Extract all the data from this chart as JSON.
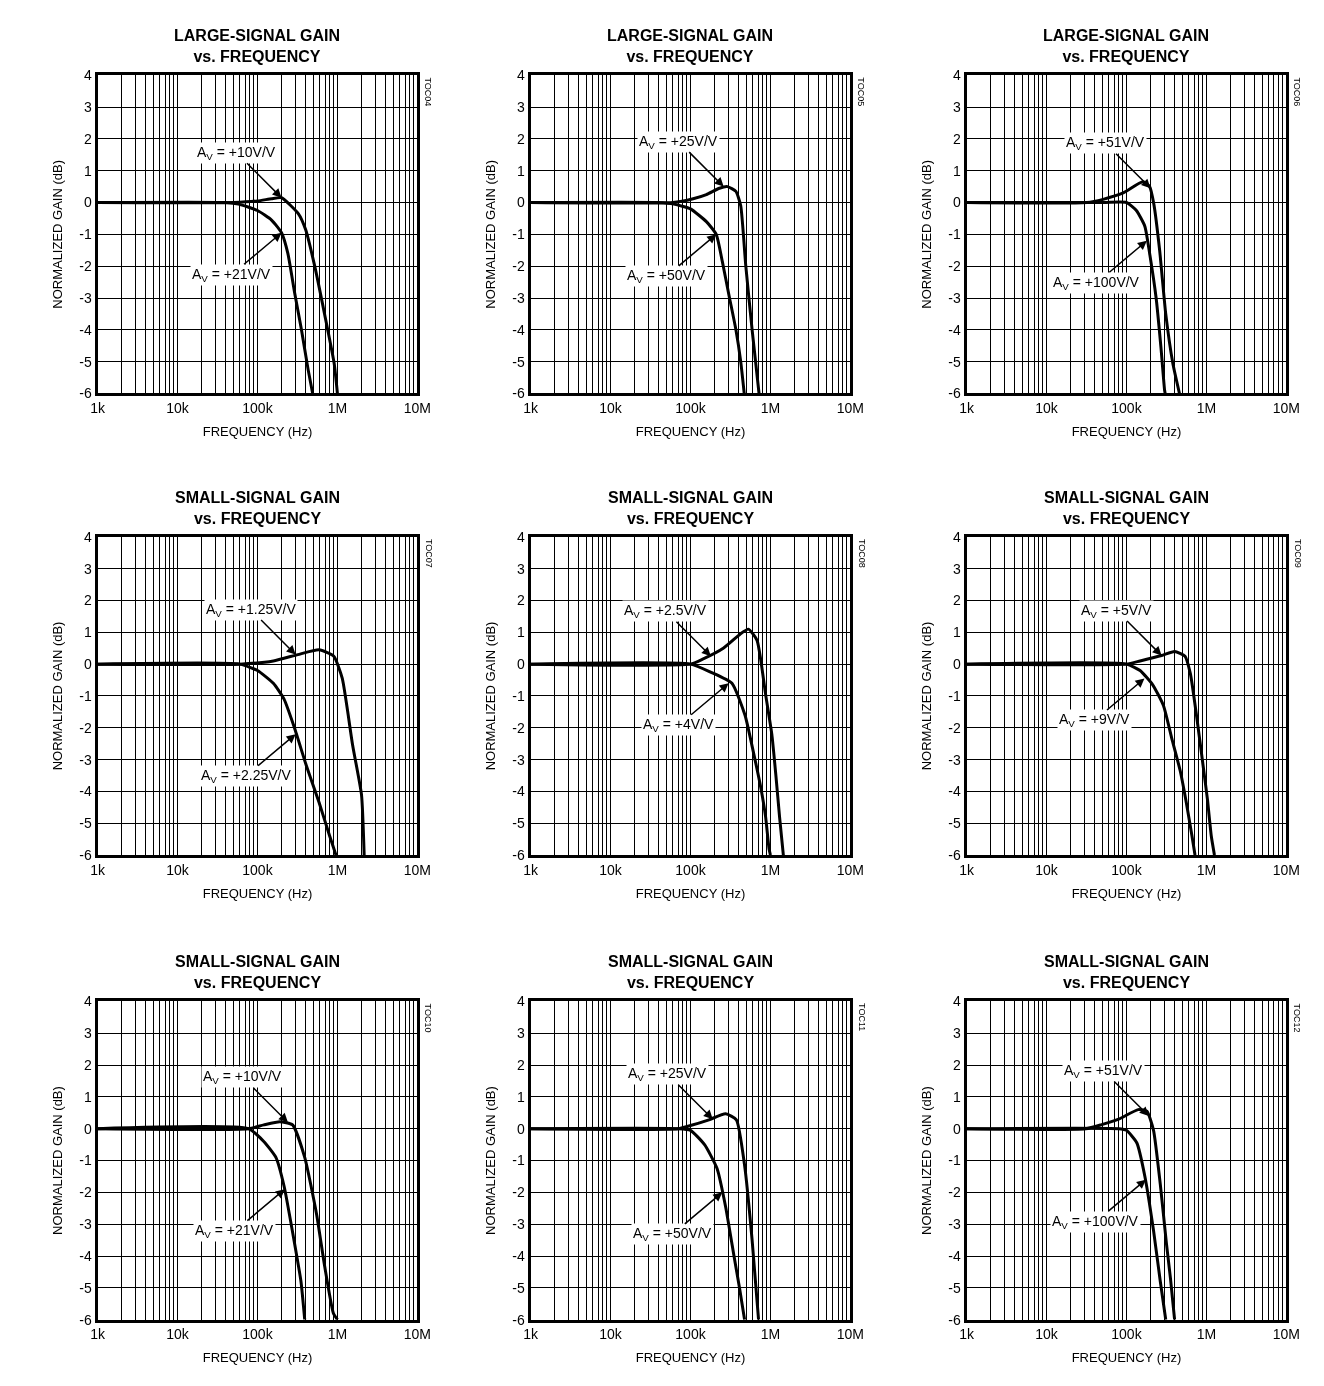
{
  "chart_data": [
    {
      "type": "line",
      "title": "LARGE-SIGNAL GAIN\nvs. FREQUENCY",
      "xlabel": "FREQUENCY (Hz)",
      "ylabel": "NORMALIZED GAIN (dB)",
      "log": "x",
      "grid": true,
      "xlim": [
        1000,
        10000000
      ],
      "xticks": [
        {
          "value": 1000,
          "label": "1k"
        },
        {
          "value": 10000,
          "label": "10k"
        },
        {
          "value": 100000,
          "label": "100k"
        },
        {
          "value": 1000000,
          "label": "1M"
        },
        {
          "value": 10000000,
          "label": "10M"
        }
      ],
      "ylim": [
        -6,
        4
      ],
      "yticks": [
        -6,
        -5,
        -4,
        -3,
        -2,
        -1,
        0,
        1,
        2,
        3,
        4
      ],
      "series": [
        {
          "color": "#000000",
          "x": [
            1000,
            50000,
            100000,
            150000,
            200000,
            324000,
            400000,
            520000,
            690000,
            910000,
            1000000
          ],
          "values": [
            0,
            0,
            0.05,
            0.12,
            0.15,
            -0.35,
            -0.85,
            -2,
            -3.5,
            -5.05,
            -6
          ]
        },
        {
          "color": "#000000",
          "x": [
            1000,
            40000,
            58000,
            100000,
            150000,
            200000,
            240000,
            290000,
            355000,
            430000,
            490000
          ],
          "values": [
            0,
            0,
            -0.05,
            -0.25,
            -0.55,
            -0.95,
            -1.6,
            -2.8,
            -4,
            -5.25,
            -6
          ]
        }
      ],
      "annotations": [
        {
          "text": "A$_{V}$ = +10V/V",
          "x": 200000,
          "y": 0.15
        },
        {
          "text": "A$_{V}$ = +21V/V",
          "x": 200000,
          "y": -0.95
        },
        "TOC04"
      ]
    },
    {
      "type": "line",
      "title": "LARGE-SIGNAL GAIN\nvs. FREQUENCY",
      "xlabel": "FREQUENCY (Hz)",
      "ylabel": "NORMALIZED GAIN (dB)",
      "log": "x",
      "grid": true,
      "xlim": [
        1000,
        10000000
      ],
      "xticks": [
        {
          "value": 1000,
          "label": "1k"
        },
        {
          "value": 10000,
          "label": "10k"
        },
        {
          "value": 100000,
          "label": "100k"
        },
        {
          "value": 1000000,
          "label": "1M"
        },
        {
          "value": 10000000,
          "label": "10M"
        }
      ],
      "ylim": [
        -6,
        4
      ],
      "yticks": [
        -6,
        -5,
        -4,
        -3,
        -2,
        -1,
        0,
        1,
        2,
        3,
        4
      ],
      "series": [
        {
          "color": "#000000",
          "x": [
            1000,
            60000,
            108000,
            158000,
            230000,
            290000,
            370000,
            425000,
            490000,
            590000,
            720000
          ],
          "values": [
            0,
            0,
            0.12,
            0.25,
            0.45,
            0.5,
            0.35,
            -0.1,
            -1.95,
            -4,
            -6
          ]
        },
        {
          "color": "#000000",
          "x": [
            1000,
            40000,
            62000,
            100000,
            158000,
            210000,
            250000,
            305000,
            370000,
            425000,
            470000
          ],
          "values": [
            0,
            0,
            -0.05,
            -0.2,
            -0.6,
            -1,
            -1.85,
            -2.95,
            -4,
            -5,
            -6
          ]
        }
      ],
      "annotations": [
        {
          "text": "A$_{V}$ = +25V/V",
          "x": 260000,
          "y": 0.5
        },
        {
          "text": "A$_{V}$ = +50V/V",
          "x": 210000,
          "y": -1
        },
        "TOC05"
      ]
    },
    {
      "type": "line",
      "title": "LARGE-SIGNAL GAIN\nvs. FREQUENCY",
      "xlabel": "FREQUENCY (Hz)",
      "ylabel": "NORMALIZED GAIN (dB)",
      "log": "x",
      "grid": true,
      "xlim": [
        1000,
        10000000
      ],
      "xticks": [
        {
          "value": 1000,
          "label": "1k"
        },
        {
          "value": 10000,
          "label": "10k"
        },
        {
          "value": 100000,
          "label": "100k"
        },
        {
          "value": 1000000,
          "label": "1M"
        },
        {
          "value": 10000000,
          "label": "10M"
        }
      ],
      "ylim": [
        -6,
        4
      ],
      "yticks": [
        -6,
        -5,
        -4,
        -3,
        -2,
        -1,
        0,
        1,
        2,
        3,
        4
      ],
      "series": [
        {
          "color": "#000000",
          "x": [
            1000,
            32000,
            51000,
            91000,
            160000,
            195000,
            220000,
            260000,
            310000,
            380000,
            460000
          ],
          "values": [
            0,
            0,
            0.1,
            0.3,
            0.65,
            0.5,
            -0.05,
            -1.5,
            -3.5,
            -5.05,
            -6
          ]
        },
        {
          "color": "#000000",
          "x": [
            1000,
            51000,
            100000,
            133000,
            170000,
            195000,
            235000,
            270000,
            300000,
            305000
          ],
          "values": [
            0,
            0,
            0,
            -0.25,
            -0.75,
            -1.6,
            -3,
            -4.55,
            -5.9,
            -6
          ]
        }
      ],
      "annotations": [
        {
          "text": "A$_{V}$ = +51V/V",
          "x": 200000,
          "y": 0.45
        },
        {
          "text": "A$_{V}$ = +100V/V",
          "x": 180000,
          "y": -1.2
        },
        "TOC06"
      ]
    },
    {
      "type": "line",
      "title": "SMALL-SIGNAL GAIN\nvs. FREQUENCY",
      "xlabel": "FREQUENCY (Hz)",
      "ylabel": "NORMALIZED GAIN (dB)",
      "log": "x",
      "grid": true,
      "xlim": [
        1000,
        10000000
      ],
      "xticks": [
        {
          "value": 1000,
          "label": "1k"
        },
        {
          "value": 10000,
          "label": "10k"
        },
        {
          "value": 100000,
          "label": "100k"
        },
        {
          "value": 1000000,
          "label": "1M"
        },
        {
          "value": 10000000,
          "label": "10M"
        }
      ],
      "ylim": [
        -6,
        4
      ],
      "yticks": [
        -6,
        -5,
        -4,
        -3,
        -2,
        -1,
        0,
        1,
        2,
        3,
        4
      ],
      "series": [
        {
          "color": "#000000",
          "x": [
            1000,
            60000,
            158000,
            320000,
            590000,
            900000,
            1150000,
            1550000,
            2000000,
            2160000
          ],
          "values": [
            0,
            0,
            0.1,
            0.3,
            0.45,
            0.25,
            -0.45,
            -2.55,
            -4.1,
            -6
          ]
        },
        {
          "color": "#000000",
          "x": [
            1000,
            60000,
            100000,
            158000,
            215000,
            290000,
            410000,
            590000,
            800000,
            960000
          ],
          "values": [
            0,
            0,
            -0.2,
            -0.6,
            -1.1,
            -2,
            -3.2,
            -4.35,
            -5.4,
            -6
          ]
        }
      ],
      "annotations": [
        {
          "text": "A$_{V}$ = +1.25V/V",
          "x": 300000,
          "y": 0.3
        },
        {
          "text": "A$_{V}$ = +2.25V/V",
          "x": 300000,
          "y": -2.2
        },
        "TOC07"
      ]
    },
    {
      "type": "line",
      "title": "SMALL-SIGNAL GAIN\nvs. FREQUENCY",
      "xlabel": "FREQUENCY (Hz)",
      "ylabel": "NORMALIZED GAIN (dB)",
      "log": "x",
      "grid": true,
      "xlim": [
        1000,
        10000000
      ],
      "xticks": [
        {
          "value": 1000,
          "label": "1k"
        },
        {
          "value": 10000,
          "label": "10k"
        },
        {
          "value": 100000,
          "label": "100k"
        },
        {
          "value": 1000000,
          "label": "1M"
        },
        {
          "value": 10000000,
          "label": "10M"
        }
      ],
      "ylim": [
        -6,
        4
      ],
      "yticks": [
        -6,
        -5,
        -4,
        -3,
        -2,
        -1,
        0,
        1,
        2,
        3,
        4
      ],
      "series": [
        {
          "color": "#000000",
          "x": [
            1000,
            100000,
            140000,
            257000,
            420000,
            530000,
            680000,
            760000,
            870000,
            1040000,
            1170000,
            1300000,
            1450000
          ],
          "values": [
            0,
            0,
            0.15,
            0.5,
            0.95,
            1.1,
            0.75,
            0.1,
            -0.95,
            -2.2,
            -3.5,
            -4.8,
            -6
          ]
        },
        {
          "color": "#000000",
          "x": [
            1000,
            100000,
            178000,
            330000,
            480000,
            610000,
            760000,
            870000,
            960000,
            1000000
          ],
          "values": [
            0,
            0,
            -0.25,
            -0.6,
            -1.6,
            -2.75,
            -3.9,
            -4.8,
            -5.8,
            -6
          ]
        }
      ],
      "annotations": [
        {
          "text": "A$_{V}$ = +2.5V/V",
          "x": 180000,
          "y": 0.25
        },
        {
          "text": "A$_{V}$ = +4V/V",
          "x": 300000,
          "y": -0.6
        },
        "TOC08"
      ]
    },
    {
      "type": "line",
      "title": "SMALL-SIGNAL GAIN\nvs. FREQUENCY",
      "xlabel": "FREQUENCY (Hz)",
      "ylabel": "NORMALIZED GAIN (dB)",
      "log": "x",
      "grid": true,
      "xlim": [
        1000,
        10000000
      ],
      "xticks": [
        {
          "value": 1000,
          "label": "1k"
        },
        {
          "value": 10000,
          "label": "10k"
        },
        {
          "value": 100000,
          "label": "100k"
        },
        {
          "value": 1000000,
          "label": "1M"
        },
        {
          "value": 10000000,
          "label": "10M"
        }
      ],
      "ylim": [
        -6,
        4
      ],
      "yticks": [
        -6,
        -5,
        -4,
        -3,
        -2,
        -1,
        0,
        1,
        2,
        3,
        4
      ],
      "series": [
        {
          "color": "#000000",
          "x": [
            1000,
            100000,
            148000,
            275000,
            400000,
            540000,
            630000,
            760000,
            910000,
            1030000,
            1150000,
            1260000
          ],
          "values": [
            0,
            0,
            0.1,
            0.27,
            0.4,
            0.25,
            -0.3,
            -1.7,
            -3.2,
            -4.25,
            -5.4,
            -6
          ]
        },
        {
          "color": "#000000",
          "x": [
            1000,
            100000,
            148000,
            213000,
            290000,
            370000,
            470000,
            565000,
            660000,
            720000
          ],
          "values": [
            0,
            0,
            -0.2,
            -0.65,
            -1.3,
            -2.35,
            -3.35,
            -4.4,
            -5.4,
            -6
          ]
        }
      ],
      "annotations": [
        {
          "text": "A$_{V}$ = +5V/V",
          "x": 275000,
          "y": 0.27
        },
        {
          "text": "A$_{V}$ = +9V/V",
          "x": 168000,
          "y": -0.45
        },
        "TOC09"
      ]
    },
    {
      "type": "line",
      "title": "SMALL-SIGNAL GAIN\nvs. FREQUENCY",
      "xlabel": "FREQUENCY (Hz)",
      "ylabel": "NORMALIZED GAIN (dB)",
      "log": "x",
      "grid": true,
      "xlim": [
        1000,
        10000000
      ],
      "xticks": [
        {
          "value": 1000,
          "label": "1k"
        },
        {
          "value": 10000,
          "label": "10k"
        },
        {
          "value": 100000,
          "label": "100k"
        },
        {
          "value": 1000000,
          "label": "1M"
        },
        {
          "value": 10000000,
          "label": "10M"
        }
      ],
      "ylim": [
        -6,
        4
      ],
      "yticks": [
        -6,
        -5,
        -4,
        -3,
        -2,
        -1,
        0,
        1,
        2,
        3,
        4
      ],
      "series": [
        {
          "color": "#000000",
          "x": [
            1000,
            77000,
            120000,
            190000,
            275000,
            390000,
            550000,
            690000,
            890000,
            1000000
          ],
          "values": [
            0,
            0,
            0.12,
            0.22,
            0.12,
            -0.9,
            -2.7,
            -4.3,
            -5.8,
            -6
          ]
        },
        {
          "color": "#000000",
          "x": [
            1000,
            77000,
            120000,
            170000,
            215000,
            275000,
            350000,
            390000
          ],
          "values": [
            0,
            0,
            -0.4,
            -0.9,
            -1.8,
            -3.25,
            -4.8,
            -6
          ]
        }
      ],
      "annotations": [
        {
          "text": "A$_{V}$ = +10V/V",
          "x": 240000,
          "y": 0.2
        },
        {
          "text": "A$_{V}$ = +21V/V",
          "x": 220000,
          "y": -1.9
        },
        "TOC10"
      ]
    },
    {
      "type": "line",
      "title": "SMALL-SIGNAL GAIN\nvs. FREQUENCY",
      "xlabel": "FREQUENCY (Hz)",
      "ylabel": "NORMALIZED GAIN (dB)",
      "log": "x",
      "grid": true,
      "xlim": [
        1000,
        10000000
      ],
      "xticks": [
        {
          "value": 1000,
          "label": "1k"
        },
        {
          "value": 10000,
          "label": "10k"
        },
        {
          "value": 100000,
          "label": "100k"
        },
        {
          "value": 1000000,
          "label": "1M"
        },
        {
          "value": 10000000,
          "label": "10M"
        }
      ],
      "ylim": [
        -6,
        4
      ],
      "yticks": [
        -6,
        -5,
        -4,
        -3,
        -2,
        -1,
        0,
        1,
        2,
        3,
        4
      ],
      "series": [
        {
          "color": "#000000",
          "x": [
            1000,
            70000,
            100000,
            170000,
            275000,
            375000,
            475000,
            590000,
            710000
          ],
          "values": [
            0,
            0,
            0.1,
            0.28,
            0.47,
            0.28,
            -1.15,
            -3.5,
            -6
          ]
        },
        {
          "color": "#000000",
          "x": [
            1000,
            70000,
            100000,
            150000,
            215000,
            275000,
            350000,
            410000,
            475000
          ],
          "values": [
            0,
            0,
            -0.05,
            -0.5,
            -1.25,
            -2.45,
            -4,
            -5,
            -6
          ]
        }
      ],
      "annotations": [
        {
          "text": "A$_{V}$ = +25V/V",
          "x": 190000,
          "y": 0.3
        },
        {
          "text": "A$_{V}$ = +50V/V",
          "x": 250000,
          "y": -2
        },
        "TOC11"
      ]
    },
    {
      "type": "line",
      "title": "SMALL-SIGNAL GAIN\nvs. FREQUENCY",
      "xlabel": "FREQUENCY (Hz)",
      "ylabel": "NORMALIZED GAIN (dB)",
      "log": "x",
      "grid": true,
      "xlim": [
        1000,
        10000000
      ],
      "xticks": [
        {
          "value": 1000,
          "label": "1k"
        },
        {
          "value": 10000,
          "label": "10k"
        },
        {
          "value": 100000,
          "label": "100k"
        },
        {
          "value": 1000000,
          "label": "1M"
        },
        {
          "value": 10000000,
          "label": "10M"
        }
      ],
      "ylim": [
        -6,
        4
      ],
      "yticks": [
        -6,
        -5,
        -4,
        -3,
        -2,
        -1,
        0,
        1,
        2,
        3,
        4
      ],
      "series": [
        {
          "color": "#000000",
          "x": [
            1000,
            31000,
            49000,
            80000,
            140000,
            180000,
            218000,
            265000,
            316000,
            355000,
            400000
          ],
          "values": [
            0,
            0,
            0.13,
            0.3,
            0.6,
            0.55,
            -0.05,
            -1.75,
            -3.6,
            -4.7,
            -6
          ]
        },
        {
          "color": "#000000",
          "x": [
            1000,
            80000,
            100000,
            135000,
            170000,
            218000,
            265000,
            310000
          ],
          "values": [
            0,
            0,
            -0.05,
            -0.45,
            -1.5,
            -3.2,
            -4.8,
            -6
          ]
        }
      ],
      "annotations": [
        {
          "text": "A$_{V}$ = +51V/V",
          "x": 190000,
          "y": 0.4
        },
        {
          "text": "A$_{V}$ = +100V/V",
          "x": 175000,
          "y": -1.6
        },
        "TOC12"
      ]
    }
  ]
}
